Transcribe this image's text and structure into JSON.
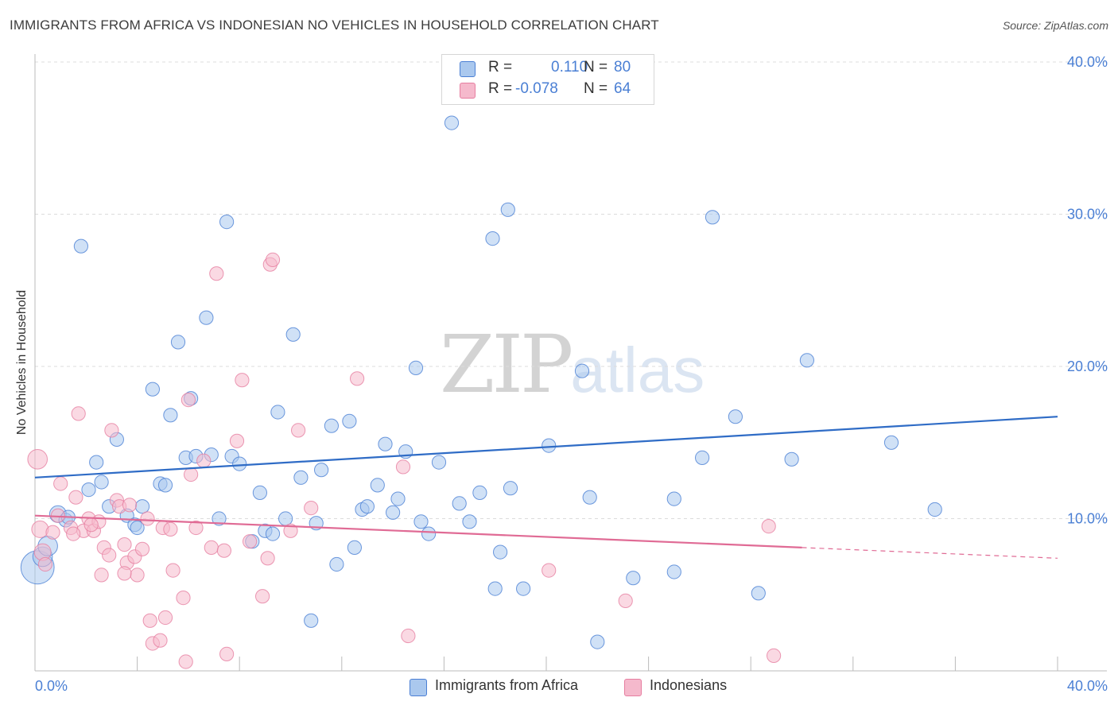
{
  "title": "IMMIGRANTS FROM AFRICA VS INDONESIAN NO VEHICLES IN HOUSEHOLD CORRELATION CHART",
  "source": "Source: ZipAtlas.com",
  "watermark": {
    "zip": "ZIP",
    "atlas": "atlas"
  },
  "colors": {
    "blue": "#4a7fd4",
    "blue_fill": "#aac8ee",
    "blue_line": "#2f6cc6",
    "pink": "#e67ea0",
    "pink_fill": "#f5b9cc",
    "pink_line": "#e06b95",
    "axis_text": "#4a7fd4",
    "grid": "#dcdcdc"
  },
  "legend": {
    "blue": {
      "r_label": "R =",
      "r_value": "0.110",
      "n_label": "N =",
      "n_value": "80"
    },
    "pink": {
      "r_label": "R =",
      "r_value": "-0.078",
      "n_label": "N =",
      "n_value": "64"
    }
  },
  "bottom_legend": {
    "blue": "Immigrants from Africa",
    "pink": "Indonesians"
  },
  "chart_data": {
    "type": "scatter",
    "title": "IMMIGRANTS FROM AFRICA VS INDONESIAN NO VEHICLES IN HOUSEHOLD CORRELATION CHART",
    "xlabel": "",
    "ylabel": "No Vehicles in Household",
    "xlim": [
      0,
      40
    ],
    "ylim": [
      0,
      40
    ],
    "x_ticks": [
      "0.0%",
      "40.0%"
    ],
    "y_ticks": [
      {
        "value": 10,
        "label": "10.0%"
      },
      {
        "value": 20,
        "label": "20.0%"
      },
      {
        "value": 30,
        "label": "30.0%"
      },
      {
        "value": 40,
        "label": "40.0%"
      }
    ],
    "grid": true,
    "legend_position": "top-center",
    "series": [
      {
        "name": "Immigrants from Africa",
        "r": 0.11,
        "n": 80,
        "trend": {
          "x": [
            0,
            40
          ],
          "y": [
            12.7,
            16.7
          ],
          "dashed_from": null
        },
        "points": [
          [
            0.1,
            6.8,
            2.2
          ],
          [
            0.3,
            7.5,
            1.3
          ],
          [
            0.5,
            8.2,
            1.3
          ],
          [
            0.9,
            10.3,
            1.1
          ],
          [
            1.2,
            9.9,
            0.9
          ],
          [
            1.3,
            10.1,
            0.9
          ],
          [
            1.8,
            27.9,
            0.9
          ],
          [
            2.4,
            13.7,
            0.9
          ],
          [
            2.6,
            12.4,
            0.9
          ],
          [
            2.1,
            11.9,
            0.9
          ],
          [
            2.9,
            10.8,
            0.9
          ],
          [
            3.2,
            15.2,
            0.9
          ],
          [
            3.6,
            10.2,
            0.9
          ],
          [
            3.9,
            9.6,
            0.9
          ],
          [
            4.0,
            9.4,
            0.9
          ],
          [
            4.2,
            10.8,
            0.9
          ],
          [
            4.6,
            18.5,
            0.9
          ],
          [
            4.9,
            12.3,
            0.9
          ],
          [
            5.1,
            12.2,
            0.9
          ],
          [
            5.3,
            16.8,
            0.9
          ],
          [
            5.6,
            21.6,
            0.9
          ],
          [
            5.9,
            14.0,
            0.9
          ],
          [
            6.1,
            17.9,
            0.9
          ],
          [
            6.3,
            14.1,
            0.9
          ],
          [
            6.7,
            23.2,
            0.9
          ],
          [
            6.9,
            14.2,
            0.9
          ],
          [
            7.2,
            10.0,
            0.9
          ],
          [
            7.5,
            29.5,
            0.9
          ],
          [
            7.7,
            14.1,
            0.9
          ],
          [
            8.0,
            13.6,
            0.9
          ],
          [
            8.5,
            8.5,
            0.9
          ],
          [
            8.8,
            11.7,
            0.9
          ],
          [
            9.0,
            9.2,
            0.9
          ],
          [
            9.3,
            9.0,
            0.9
          ],
          [
            9.5,
            17.0,
            0.9
          ],
          [
            9.8,
            10.0,
            0.9
          ],
          [
            10.1,
            22.1,
            0.9
          ],
          [
            10.4,
            12.7,
            0.9
          ],
          [
            10.8,
            3.3,
            0.9
          ],
          [
            11.0,
            9.7,
            0.9
          ],
          [
            11.2,
            13.2,
            0.9
          ],
          [
            11.6,
            16.1,
            0.9
          ],
          [
            11.8,
            7.0,
            0.9
          ],
          [
            12.3,
            16.4,
            0.9
          ],
          [
            12.5,
            8.1,
            0.9
          ],
          [
            12.8,
            10.6,
            0.9
          ],
          [
            13.0,
            10.8,
            0.9
          ],
          [
            13.4,
            12.2,
            0.9
          ],
          [
            13.7,
            14.9,
            0.9
          ],
          [
            14.0,
            10.4,
            0.9
          ],
          [
            14.2,
            11.3,
            0.9
          ],
          [
            14.5,
            14.4,
            0.9
          ],
          [
            14.9,
            19.9,
            0.9
          ],
          [
            15.1,
            9.8,
            0.9
          ],
          [
            15.4,
            9.0,
            0.9
          ],
          [
            15.8,
            13.7,
            0.9
          ],
          [
            16.3,
            36.0,
            0.9
          ],
          [
            16.6,
            11.0,
            0.9
          ],
          [
            17.0,
            9.8,
            0.9
          ],
          [
            17.4,
            11.7,
            0.9
          ],
          [
            17.9,
            28.4,
            0.9
          ],
          [
            18.2,
            7.8,
            0.9
          ],
          [
            18.5,
            30.3,
            0.9
          ],
          [
            18.6,
            12.0,
            0.9
          ],
          [
            18.0,
            5.4,
            0.9
          ],
          [
            19.1,
            5.4,
            0.9
          ],
          [
            20.1,
            14.8,
            0.9
          ],
          [
            21.4,
            19.7,
            0.9
          ],
          [
            21.7,
            11.4,
            0.9
          ],
          [
            22.0,
            1.9,
            0.9
          ],
          [
            23.4,
            6.1,
            0.9
          ],
          [
            25.0,
            6.5,
            0.9
          ],
          [
            25.0,
            11.3,
            0.9
          ],
          [
            26.1,
            14.0,
            0.9
          ],
          [
            26.5,
            29.8,
            0.9
          ],
          [
            27.4,
            16.7,
            0.9
          ],
          [
            28.3,
            5.1,
            0.9
          ],
          [
            29.6,
            13.9,
            0.9
          ],
          [
            30.2,
            20.4,
            0.9
          ],
          [
            33.5,
            15.0,
            0.9
          ],
          [
            35.2,
            10.6,
            0.9
          ]
        ]
      },
      {
        "name": "Indonesians",
        "r": -0.078,
        "n": 64,
        "trend": {
          "x": [
            0,
            30,
            40
          ],
          "y": [
            10.2,
            8.1,
            7.4
          ],
          "dashed_from": 30
        },
        "points": [
          [
            0.1,
            13.9,
            1.3
          ],
          [
            0.2,
            9.3,
            1.1
          ],
          [
            0.3,
            7.8,
            1.1
          ],
          [
            0.4,
            7.0,
            0.9
          ],
          [
            0.7,
            9.1,
            0.9
          ],
          [
            0.9,
            10.2,
            0.9
          ],
          [
            1.0,
            12.3,
            0.9
          ],
          [
            1.4,
            9.4,
            0.9
          ],
          [
            1.6,
            11.4,
            0.9
          ],
          [
            1.7,
            16.9,
            0.9
          ],
          [
            1.9,
            9.2,
            0.9
          ],
          [
            2.1,
            10.0,
            0.9
          ],
          [
            2.3,
            9.2,
            0.9
          ],
          [
            2.5,
            9.8,
            0.9
          ],
          [
            2.6,
            6.3,
            0.9
          ],
          [
            2.7,
            8.1,
            0.9
          ],
          [
            2.9,
            7.6,
            0.9
          ],
          [
            3.0,
            15.8,
            0.9
          ],
          [
            3.2,
            11.2,
            0.9
          ],
          [
            3.3,
            10.8,
            0.9
          ],
          [
            3.5,
            8.3,
            0.9
          ],
          [
            3.6,
            7.1,
            0.9
          ],
          [
            3.7,
            10.9,
            0.9
          ],
          [
            3.9,
            7.5,
            0.9
          ],
          [
            4.0,
            6.3,
            0.9
          ],
          [
            4.2,
            8.0,
            0.9
          ],
          [
            4.4,
            10.0,
            0.9
          ],
          [
            4.5,
            3.3,
            0.9
          ],
          [
            4.6,
            1.8,
            0.9
          ],
          [
            4.9,
            2.0,
            0.9
          ],
          [
            5.0,
            9.4,
            0.9
          ],
          [
            5.3,
            9.3,
            0.9
          ],
          [
            5.4,
            6.6,
            0.9
          ],
          [
            5.8,
            4.8,
            0.9
          ],
          [
            6.0,
            17.8,
            0.9
          ],
          [
            6.1,
            12.9,
            0.9
          ],
          [
            6.3,
            9.4,
            0.9
          ],
          [
            6.6,
            13.8,
            0.9
          ],
          [
            6.9,
            8.1,
            0.9
          ],
          [
            7.1,
            26.1,
            0.9
          ],
          [
            7.4,
            7.9,
            0.9
          ],
          [
            7.5,
            1.1,
            0.9
          ],
          [
            7.9,
            15.1,
            0.9
          ],
          [
            8.1,
            19.1,
            0.9
          ],
          [
            8.4,
            8.5,
            0.9
          ],
          [
            8.9,
            4.9,
            0.9
          ],
          [
            9.1,
            7.4,
            0.9
          ],
          [
            9.2,
            26.7,
            0.9
          ],
          [
            9.3,
            27.0,
            0.9
          ],
          [
            10.0,
            9.2,
            0.9
          ],
          [
            10.3,
            15.8,
            0.9
          ],
          [
            10.8,
            10.7,
            0.9
          ],
          [
            12.6,
            19.2,
            0.9
          ],
          [
            14.4,
            13.4,
            0.9
          ],
          [
            14.6,
            2.3,
            0.9
          ],
          [
            20.1,
            6.6,
            0.9
          ],
          [
            23.1,
            4.6,
            0.9
          ],
          [
            28.7,
            9.5,
            0.9
          ],
          [
            28.9,
            1.0,
            0.9
          ],
          [
            5.9,
            0.6,
            0.9
          ],
          [
            5.1,
            3.5,
            0.9
          ],
          [
            3.5,
            6.4,
            0.9
          ],
          [
            2.2,
            9.6,
            0.9
          ],
          [
            1.5,
            9.0,
            0.9
          ]
        ]
      }
    ]
  }
}
